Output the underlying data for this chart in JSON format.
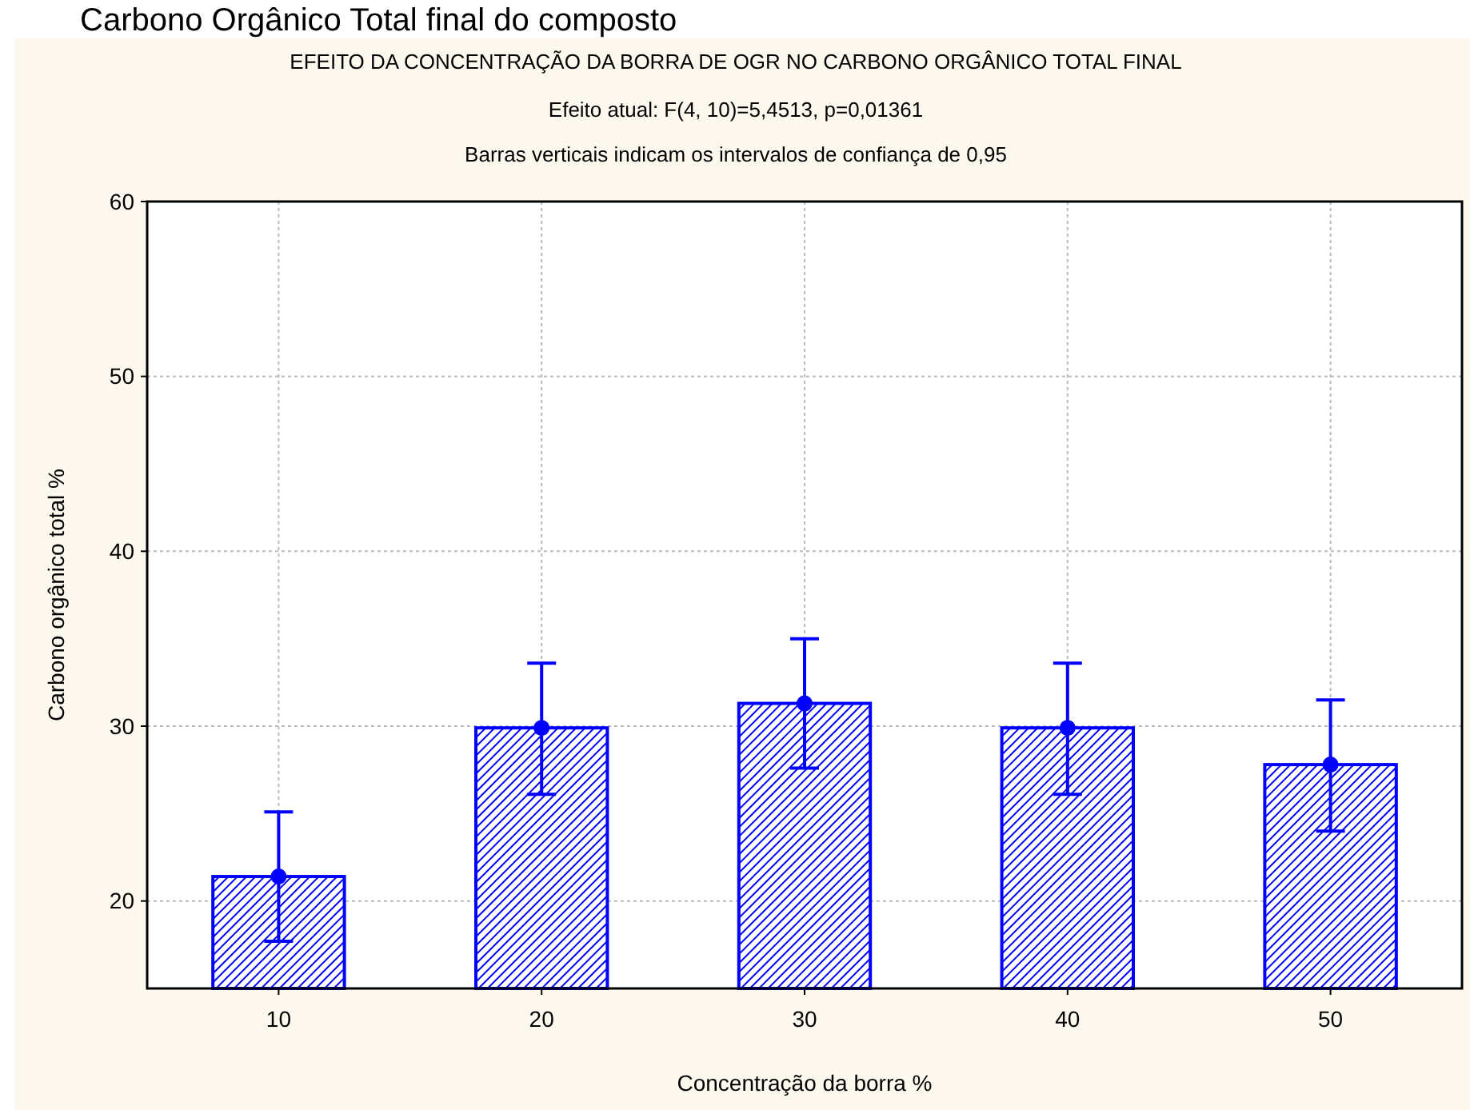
{
  "chart_data": {
    "type": "bar",
    "title": "Carbono Orgânico Total final do composto",
    "subtitle": "EFEITO DA CONCENTRAÇÃO DA BORRA DE OGR NO CARBONO ORGÂNICO TOTAL FINAL",
    "annotations": [
      "Efeito atual: F(4, 10)=5,4513, p=0,01361",
      "Barras verticais indicam os intervalos de confiança de 0,95"
    ],
    "xlabel": "Concentração da borra %",
    "ylabel": "Carbono orgânico total %",
    "categories": [
      "10",
      "20",
      "30",
      "40",
      "50"
    ],
    "series": [
      {
        "color": "#0000ff",
        "values": [
          21.4,
          29.9,
          31.3,
          29.9,
          27.8
        ]
      },
      {
        "type": "scatter",
        "color": "#0000ff",
        "marker": "circle",
        "x": [
          "10",
          "20",
          "30",
          "40",
          "50"
        ],
        "values": [
          21.4,
          29.9,
          31.3,
          29.9,
          27.8
        ],
        "errors": [
          [
            17.7,
            25.1
          ],
          [
            26.1,
            33.6
          ],
          [
            27.6,
            35.0
          ],
          [
            26.1,
            33.6
          ],
          [
            24.0,
            31.5
          ]
        ]
      }
    ],
    "ylim": [
      15,
      60
    ],
    "yticks": [
      20,
      30,
      40,
      50,
      60
    ],
    "grid": true
  }
}
